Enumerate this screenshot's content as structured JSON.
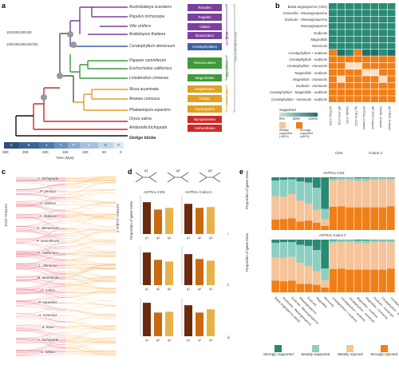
{
  "panels": {
    "a": "a",
    "b": "b",
    "c": "c",
    "d": "d",
    "e": "e"
  },
  "a": {
    "node_labels": [
      "100/100/100/100",
      "100/100/100/100/100"
    ],
    "taxa": [
      "Austrobaileya scandens",
      "Populus trichocarpa",
      "Vitis vinifera",
      "Arabidopsis thaliana",
      "Ceratophyllum demersum",
      "Papaver somniferum",
      "Eschscholzia californica",
      "Liriodendron chinense",
      "Musa acuminata",
      "Ananas comosus",
      "Phalaenopsis equestris",
      "Oryza sativa",
      "Amborella trichopoda",
      "Ginkgo biloba"
    ],
    "orders": [
      {
        "label": "Rosales",
        "color": "#7b3fa0"
      },
      {
        "label": "Fagales",
        "color": "#7b3fa0"
      },
      {
        "label": "Vitales",
        "color": "#7b3fa0"
      },
      {
        "label": "Brassicales",
        "color": "#7b3fa0"
      },
      {
        "label": "Ceratophyllales",
        "color": "#3d5fa3"
      },
      {
        "label": "Ranunculales",
        "color": "#3f9a3a"
      },
      {
        "label": "Magnoliales",
        "color": "#3f9a3a"
      },
      {
        "label": "Zingiberales",
        "color": "#e0a020"
      },
      {
        "label": "Poales",
        "color": "#e0a020"
      },
      {
        "label": "Asparagales",
        "color": "#e0a020"
      },
      {
        "label": "Nymphaeales",
        "color": "#cc2a2a"
      },
      {
        "label": "Amborellales",
        "color": "#cc2a2a"
      }
    ],
    "groups": [
      "Eudicots",
      "Magnoliids",
      "Monocots",
      "Mesangiospermae"
    ],
    "timescale": [
      "C",
      "K",
      "J",
      "T",
      "P",
      "C",
      "D",
      "S"
    ],
    "time_ticks": [
      "300",
      "250",
      "200",
      "150",
      "100",
      "50",
      "0"
    ],
    "time_label": "Time (Mya)"
  },
  "b": {
    "rows": [
      "Basal angiosperms (ANA)",
      "Amborella - Mesangiosperms",
      "Eudicots - Mesangiosperms",
      "Mesangiosperms",
      "Eudicots",
      "Magnoliids",
      "Monocots",
      "Ceratophyllum + eudicots",
      "Ceratophyllum - eudicots",
      "Ceratophyllum - monocots",
      "Magnoliids - eudicots",
      "Magnoliids - monocots",
      "Eudicots - monocots",
      "Ceratophyllum - Magnoliids - eudicots",
      "Ceratophyllum - monocots - eudicots"
    ],
    "cols": [
      "ASTRAL-CDS",
      "MP-EST-CDS",
      "RAxML-CDS",
      "IQ-TREE-CDS",
      "ASTRAL-Codon2",
      "MP-EST-Codon2",
      "RAxML-Codon2",
      "IQ-TREE-Codon2"
    ],
    "col_groups": [
      "CDS",
      "Codon 2"
    ],
    "legend": {
      "title": "Supported",
      "scale_ticks": [
        "0%",
        "50%",
        "100%"
      ],
      "weak": "Weakly supported (<80%)",
      "strong": "Strongly supported (≥80%)"
    },
    "matrix": [
      [
        2,
        2,
        2,
        2,
        2,
        2,
        2,
        2
      ],
      [
        2,
        2,
        2,
        2,
        2,
        2,
        2,
        2
      ],
      [
        2,
        2,
        2,
        2,
        2,
        2,
        2,
        2
      ],
      [
        2,
        2,
        2,
        2,
        2,
        2,
        2,
        2
      ],
      [
        2,
        2,
        2,
        2,
        2,
        2,
        2,
        2
      ],
      [
        2,
        2,
        2,
        2,
        2,
        2,
        2,
        2
      ],
      [
        2,
        2,
        2,
        2,
        2,
        2,
        2,
        2
      ],
      [
        3,
        1,
        2,
        3,
        1,
        1,
        2,
        1
      ],
      [
        3,
        3,
        3,
        3,
        3,
        3,
        3,
        3
      ],
      [
        3,
        3,
        0,
        0,
        3,
        3,
        3,
        3
      ],
      [
        3,
        3,
        3,
        3,
        0,
        0,
        3,
        3
      ],
      [
        3,
        0,
        3,
        3,
        3,
        3,
        0,
        3
      ],
      [
        3,
        3,
        3,
        3,
        3,
        3,
        3,
        3
      ],
      [
        3,
        3,
        3,
        3,
        3,
        3,
        3,
        3
      ],
      [
        3,
        3,
        3,
        3,
        3,
        3,
        3,
        3
      ]
    ]
  },
  "c": {
    "left_label": "ASTRAL-CDS",
    "right_label": "ASTRAL-Codon 2",
    "taxa": [
      "A. trichopoda",
      "P. persica",
      "V. vinifera",
      "A. thaliana",
      "C. demersum",
      "P. somniferum",
      "E. californica",
      "L. chinense",
      "M. acuminata",
      "O. sativa",
      "P. equestris",
      "A. comosus",
      "S. fonsi",
      "A. trichopoda",
      "G. biloba"
    ]
  },
  "d": {
    "ylabel": "Proportion of gene trees",
    "panel_titles": [
      "ASTRAL-CDS",
      "ASTRAL-Codon 2"
    ],
    "topology_labels": [
      "q1",
      "q2",
      "q3"
    ],
    "row_roman": [
      "i",
      "ii",
      "iii"
    ],
    "tick_labels": [
      "0.0",
      "0.2",
      "0.4"
    ]
  },
  "e": {
    "title_top": "ASTRAL-CDS",
    "title_bottom": "ASTRAL-Codon 2",
    "ylabel": "Proportion of gene trees",
    "categories": [
      "Basal angiosperms (ANA)",
      "Amborella - Mesangiosperms",
      "Eudicots - Mesangiosperms",
      "Mesangiosperms",
      "Eudicots",
      "Magnoliids",
      "Monocots",
      "Ceratophyllum + eudicots",
      "Ceratophyllum - eudicots",
      "Ceratophyllum - monocots",
      "Magnoliids - eudicots",
      "Magnoliids - monocots",
      "Eudicots - monocots",
      "Ceratophyllum - Magnoliids - eudicots",
      "Ceratophyllum - monocots - eudicots"
    ],
    "legend": [
      "Strongly supported",
      "Weakly supported",
      "Weakly rejected",
      "Strongly rejected"
    ],
    "colors": [
      "#2a8a74",
      "#8ccfc2",
      "#f5c49a",
      "#f07f18"
    ]
  },
  "chart_data": [
    {
      "type": "bar",
      "title": "ASTRAL-CDS",
      "row": "i",
      "categories": [
        "q1",
        "q2",
        "q3"
      ],
      "values": [
        0.39,
        0.3,
        0.32
      ],
      "ylim": [
        0,
        0.45
      ],
      "ylabel": "Proportion of gene trees",
      "colors": [
        "#6b2a0e",
        "#c96a10",
        "#e8b24a"
      ]
    },
    {
      "type": "bar",
      "title": "ASTRAL-Codon 2",
      "row": "i",
      "categories": [
        "q1",
        "q2",
        "q3"
      ],
      "values": [
        0.37,
        0.32,
        0.33
      ],
      "ylim": [
        0,
        0.45
      ],
      "colors": [
        "#6b2a0e",
        "#c96a10",
        "#e8b24a"
      ]
    },
    {
      "type": "bar",
      "row": "ii",
      "categories": [
        "q1",
        "q2",
        "q3"
      ],
      "values": [
        0.4,
        0.31,
        0.29
      ],
      "ylim": [
        0,
        0.45
      ],
      "colors": [
        "#6b2a0e",
        "#c96a10",
        "#e8b24a"
      ]
    },
    {
      "type": "bar",
      "row": "ii",
      "categories": [
        "q1",
        "q2",
        "q3"
      ],
      "values": [
        0.38,
        0.32,
        0.3
      ],
      "ylim": [
        0,
        0.45
      ],
      "colors": [
        "#6b2a0e",
        "#c96a10",
        "#e8b24a"
      ]
    },
    {
      "type": "bar",
      "row": "iii",
      "categories": [
        "q1",
        "q2",
        "q3"
      ],
      "values": [
        0.41,
        0.29,
        0.3
      ],
      "ylim": [
        0,
        0.45
      ],
      "colors": [
        "#6b2a0e",
        "#c96a10",
        "#e8b24a"
      ]
    },
    {
      "type": "bar",
      "row": "iii",
      "categories": [
        "q1",
        "q2",
        "q3"
      ],
      "values": [
        0.38,
        0.29,
        0.33
      ],
      "ylim": [
        0,
        0.45
      ],
      "colors": [
        "#6b2a0e",
        "#c96a10",
        "#e8b24a"
      ]
    },
    {
      "type": "bar",
      "title": "ASTRAL-CDS",
      "stacked": true,
      "ylabel": "Proportion of gene trees",
      "series": [
        {
          "name": "Strongly supported",
          "values": [
            0.06,
            0.05,
            0.04,
            0.08,
            0.1,
            0.2,
            0.6,
            0.02,
            0.01,
            0.01,
            0.02,
            0.02,
            0.01,
            0.01,
            0.01
          ]
        },
        {
          "name": "Weakly supported",
          "values": [
            0.3,
            0.32,
            0.28,
            0.36,
            0.4,
            0.42,
            0.2,
            0.04,
            0.04,
            0.04,
            0.05,
            0.05,
            0.04,
            0.04,
            0.04
          ]
        },
        {
          "name": "Weakly rejected",
          "values": [
            0.44,
            0.42,
            0.46,
            0.4,
            0.32,
            0.24,
            0.12,
            0.5,
            0.5,
            0.52,
            0.5,
            0.5,
            0.52,
            0.52,
            0.5
          ]
        },
        {
          "name": "Strongly rejected",
          "values": [
            0.2,
            0.21,
            0.22,
            0.16,
            0.18,
            0.14,
            0.08,
            0.44,
            0.45,
            0.43,
            0.43,
            0.43,
            0.43,
            0.43,
            0.45
          ]
        }
      ]
    },
    {
      "type": "bar",
      "title": "ASTRAL-Codon 2",
      "stacked": true,
      "ylabel": "Proportion of gene trees",
      "series": [
        {
          "name": "Strongly supported",
          "values": [
            0.06,
            0.05,
            0.05,
            0.1,
            0.12,
            0.2,
            0.55,
            0.02,
            0.01,
            0.01,
            0.02,
            0.02,
            0.01,
            0.01,
            0.01
          ]
        },
        {
          "name": "Weakly supported",
          "values": [
            0.28,
            0.3,
            0.28,
            0.34,
            0.38,
            0.4,
            0.22,
            0.04,
            0.04,
            0.04,
            0.05,
            0.05,
            0.04,
            0.04,
            0.04
          ]
        },
        {
          "name": "Weakly rejected",
          "values": [
            0.44,
            0.44,
            0.45,
            0.4,
            0.34,
            0.26,
            0.14,
            0.5,
            0.5,
            0.52,
            0.5,
            0.5,
            0.52,
            0.52,
            0.5
          ]
        },
        {
          "name": "Strongly rejected",
          "values": [
            0.22,
            0.21,
            0.22,
            0.16,
            0.16,
            0.14,
            0.09,
            0.44,
            0.45,
            0.43,
            0.43,
            0.43,
            0.43,
            0.43,
            0.45
          ]
        }
      ]
    }
  ]
}
